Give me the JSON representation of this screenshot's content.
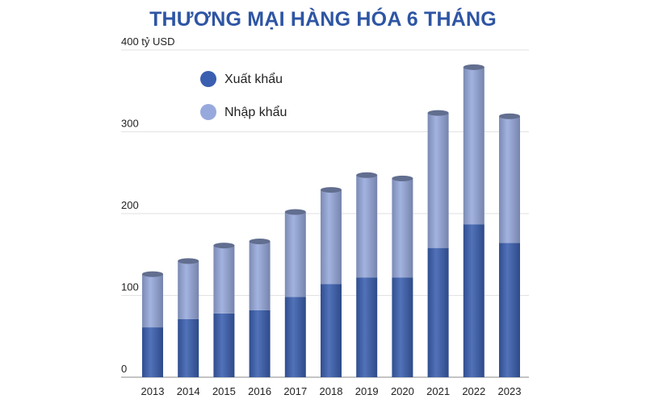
{
  "chart_data": {
    "type": "bar",
    "stacked": true,
    "title": "THƯƠNG MẠI HÀNG HÓA 6 THÁNG",
    "ylabel_unit": "tỷ USD",
    "ylim": [
      0,
      400
    ],
    "yticks": [
      0,
      100,
      200,
      300,
      400
    ],
    "grid": true,
    "legend_position": "top-left",
    "categories": [
      "2013",
      "2014",
      "2015",
      "2016",
      "2017",
      "2018",
      "2019",
      "2020",
      "2021",
      "2022",
      "2023"
    ],
    "series": [
      {
        "name": "Xuất khẩu",
        "color": "#3a5fb0",
        "values": [
          61,
          71,
          78,
          82,
          98,
          114,
          122,
          122,
          158,
          187,
          164
        ]
      },
      {
        "name": "Nhập khẩu",
        "color": "#97a9dc",
        "values": [
          65,
          71,
          83,
          84,
          104,
          115,
          125,
          121,
          165,
          192,
          155
        ]
      }
    ]
  },
  "colors": {
    "title": "#2e55a4",
    "grid": "#e2e2e2",
    "axis": "#8a8a8a"
  }
}
